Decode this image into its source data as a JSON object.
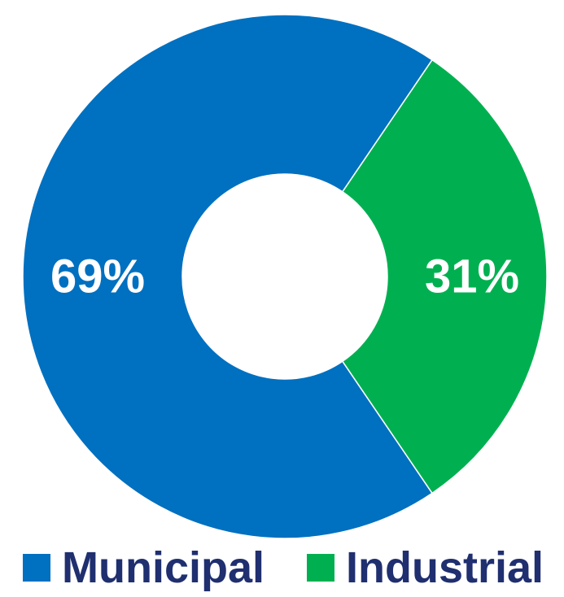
{
  "chart_data": {
    "type": "pie",
    "variant": "donut",
    "series": [
      {
        "name": "Municipal",
        "value": 69,
        "label": "69%",
        "color": "#0070c0"
      },
      {
        "name": "Industrial",
        "value": 31,
        "label": "31%",
        "color": "#00b050"
      }
    ],
    "legend_placement": "bottom",
    "legend": [
      "Municipal",
      "Industrial"
    ]
  }
}
